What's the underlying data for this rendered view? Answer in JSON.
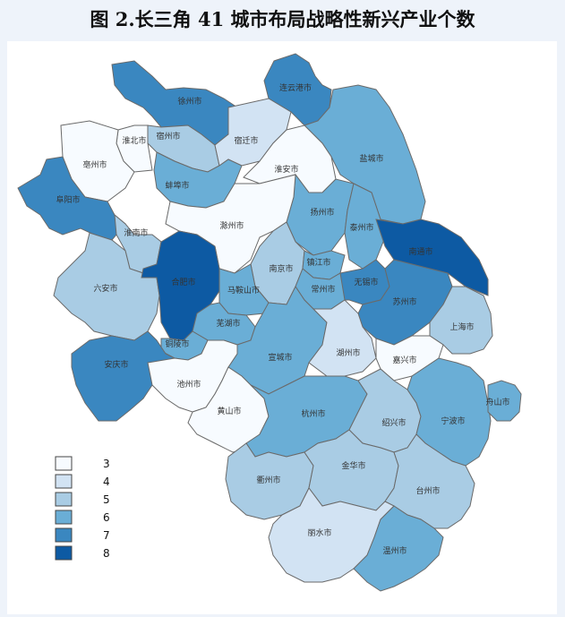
{
  "title": "图 2.长三角 41 城市布局战略性新兴产业个数",
  "legend": [
    {
      "label": "3",
      "color": "#f7fbff"
    },
    {
      "label": "4",
      "color": "#d2e3f3"
    },
    {
      "label": "5",
      "color": "#a9cce4"
    },
    {
      "label": "6",
      "color": "#6aaed6"
    },
    {
      "label": "7",
      "color": "#3a87c0"
    },
    {
      "label": "8",
      "color": "#0d5aa3"
    }
  ],
  "cities": [
    {
      "name": "连云港市",
      "value": 7
    },
    {
      "name": "徐州市",
      "value": 7
    },
    {
      "name": "宿州市",
      "value": 5
    },
    {
      "name": "淮北市",
      "value": 3
    },
    {
      "name": "宿迁市",
      "value": 4
    },
    {
      "name": "盐城市",
      "value": 6
    },
    {
      "name": "亳州市",
      "value": 3
    },
    {
      "name": "淮安市",
      "value": 3
    },
    {
      "name": "蚌埠市",
      "value": 6
    },
    {
      "name": "阜阳市",
      "value": 7
    },
    {
      "name": "扬州市",
      "value": 6
    },
    {
      "name": "泰州市",
      "value": 6
    },
    {
      "name": "南通市",
      "value": 8
    },
    {
      "name": "滁州市",
      "value": 3
    },
    {
      "name": "淮南市",
      "value": 5
    },
    {
      "name": "南京市",
      "value": 5
    },
    {
      "name": "镇江市",
      "value": 6
    },
    {
      "name": "六安市",
      "value": 5
    },
    {
      "name": "合肥市",
      "value": 8
    },
    {
      "name": "马鞍山市",
      "value": 6
    },
    {
      "name": "常州市",
      "value": 6
    },
    {
      "name": "无锡市",
      "value": 7
    },
    {
      "name": "苏州市",
      "value": 7
    },
    {
      "name": "上海市",
      "value": 5
    },
    {
      "name": "芜湖市",
      "value": 6
    },
    {
      "name": "铜陵市",
      "value": 6
    },
    {
      "name": "安庆市",
      "value": 7
    },
    {
      "name": "宣城市",
      "value": 6
    },
    {
      "name": "湖州市",
      "value": 4
    },
    {
      "name": "嘉兴市",
      "value": 3
    },
    {
      "name": "池州市",
      "value": 3
    },
    {
      "name": "黄山市",
      "value": 3
    },
    {
      "name": "杭州市",
      "value": 6
    },
    {
      "name": "绍兴市",
      "value": 5
    },
    {
      "name": "宁波市",
      "value": 6
    },
    {
      "name": "舟山市",
      "value": 6
    },
    {
      "name": "衢州市",
      "value": 5
    },
    {
      "name": "金华市",
      "value": 5
    },
    {
      "name": "台州市",
      "value": 5
    },
    {
      "name": "丽水市",
      "value": 4
    },
    {
      "name": "温州市",
      "value": 6
    }
  ]
}
